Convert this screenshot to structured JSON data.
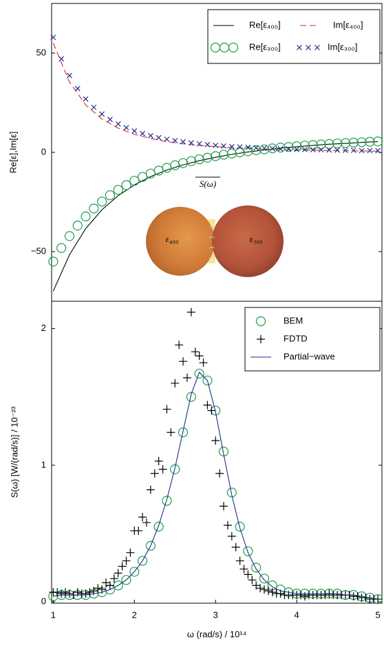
{
  "chart_data": [
    {
      "type": "line",
      "ylabel": "Re[ε],Im[ε]",
      "xlim": [
        0.98,
        5.05
      ],
      "ylim": [
        -75,
        75
      ],
      "yticks": [
        {
          "value": -50,
          "label": "−50"
        },
        0,
        50
      ],
      "legend": "upper right",
      "legend_columns": 2,
      "inset": {
        "left": "ε₄₀₀",
        "right": "ε₃₀₀",
        "flux": "S(ω)"
      },
      "series": [
        {
          "name": "Re[ε₄₀₀]",
          "marker": "line",
          "color": "#000000",
          "x": [
            1,
            1.2,
            1.4,
            1.6,
            1.8,
            2,
            2.2,
            2.4,
            2.6,
            2.8,
            3,
            3.2,
            3.4,
            3.6,
            3.8,
            4,
            4.2,
            4.4,
            4.6,
            4.8,
            5
          ],
          "values": [
            -69.9,
            -51.6,
            -38.4,
            -28.9,
            -21.8,
            -16.4,
            -12.2,
            -8.9,
            -6.3,
            -4.2,
            -2.5,
            -1.0,
            0.2,
            1.2,
            2.1,
            2.8,
            3.5,
            4.1,
            4.5,
            5.0,
            5.4
          ]
        },
        {
          "name": "Im[ε₄₀₀]",
          "marker": "dashed",
          "color": "#e0202a",
          "x": [
            1,
            1.2,
            1.4,
            1.6,
            1.8,
            2,
            2.2,
            2.4,
            2.6,
            2.8,
            3,
            3.2,
            3.4,
            3.6,
            3.8,
            4,
            4.2,
            4.4,
            4.6,
            4.8,
            5
          ],
          "values": [
            55.1,
            35.4,
            23.9,
            16.8,
            12.2,
            9.1,
            7.0,
            5.4,
            4.3,
            3.5,
            2.9,
            2.4,
            2.0,
            1.7,
            1.4,
            1.2,
            1.1,
            0.9,
            0.8,
            0.7,
            0.6
          ]
        },
        {
          "name": "Re[ε₃₀₀]",
          "marker": "circle",
          "color": "#1a9f4a",
          "x": [
            1,
            1.1,
            1.2,
            1.3,
            1.4,
            1.5,
            1.6,
            1.7,
            1.8,
            1.9,
            2,
            2.1,
            2.2,
            2.3,
            2.4,
            2.5,
            2.6,
            2.7,
            2.8,
            2.9,
            3,
            3.1,
            3.2,
            3.3,
            3.4,
            3.5,
            3.6,
            3.7,
            3.8,
            3.9,
            4,
            4.1,
            4.2,
            4.3,
            4.4,
            4.5,
            4.6,
            4.7,
            4.8,
            4.9,
            5
          ],
          "values": [
            -55.0,
            -48.2,
            -42.2,
            -36.9,
            -32.3,
            -28.3,
            -24.8,
            -21.6,
            -18.9,
            -16.5,
            -14.3,
            -12.4,
            -10.7,
            -9.2,
            -7.8,
            -6.5,
            -5.4,
            -4.4,
            -3.5,
            -2.7,
            -1.9,
            -1.2,
            -0.6,
            0.0,
            0.6,
            1.1,
            1.5,
            2.0,
            2.4,
            2.7,
            3.1,
            3.4,
            3.7,
            4.0,
            4.2,
            4.5,
            4.7,
            4.9,
            5.1,
            5.3,
            5.5
          ]
        },
        {
          "name": "Im[ε₃₀₀]",
          "marker": "x",
          "color": "#1f2a8f",
          "x": [
            1,
            1.1,
            1.2,
            1.3,
            1.4,
            1.5,
            1.6,
            1.7,
            1.8,
            1.9,
            2,
            2.1,
            2.2,
            2.3,
            2.4,
            2.5,
            2.6,
            2.7,
            2.8,
            2.9,
            3,
            3.1,
            3.2,
            3.3,
            3.4,
            3.5,
            3.6,
            3.7,
            3.8,
            3.9,
            4,
            4.1,
            4.2,
            4.3,
            4.4,
            4.5,
            4.6,
            4.7,
            4.8,
            4.9,
            5
          ],
          "values": [
            57.9,
            47.1,
            38.7,
            32.1,
            26.9,
            22.7,
            19.3,
            16.6,
            14.3,
            12.4,
            10.8,
            9.5,
            8.4,
            7.4,
            6.6,
            5.9,
            5.3,
            4.8,
            4.3,
            3.9,
            3.5,
            3.2,
            2.9,
            2.7,
            2.5,
            2.3,
            2.1,
            1.9,
            1.8,
            1.7,
            1.5,
            1.4,
            1.3,
            1.3,
            1.2,
            1.1,
            1.0,
            1.0,
            0.9,
            0.9,
            0.8
          ]
        }
      ]
    },
    {
      "type": "line",
      "xlabel": "ω (rad/s) / 10¹⁴",
      "ylabel": "S(ω) [W/(rad/s)] / 10⁻²³",
      "xlim": [
        0.98,
        5.05
      ],
      "ylim": [
        -0.01,
        2.2
      ],
      "xticks": [
        1,
        2,
        3,
        4,
        5
      ],
      "yticks": [
        0,
        1,
        2
      ],
      "legend": "upper right",
      "legend_columns": 1,
      "series": [
        {
          "name": "BEM",
          "marker": "circle",
          "color": "#1a9f4a",
          "x": [
            1,
            1.1,
            1.2,
            1.3,
            1.4,
            1.5,
            1.6,
            1.7,
            1.8,
            1.9,
            2,
            2.1,
            2.2,
            2.3,
            2.4,
            2.5,
            2.6,
            2.7,
            2.8,
            2.9,
            3,
            3.1,
            3.2,
            3.3,
            3.4,
            3.5,
            3.6,
            3.7,
            3.8,
            3.9,
            4,
            4.1,
            4.2,
            4.3,
            4.4,
            4.5,
            4.6,
            4.7,
            4.8,
            4.9,
            5
          ],
          "values": [
            0.04,
            0.05,
            0.05,
            0.05,
            0.05,
            0.06,
            0.07,
            0.09,
            0.12,
            0.16,
            0.22,
            0.3,
            0.41,
            0.55,
            0.74,
            0.97,
            1.24,
            1.5,
            1.67,
            1.62,
            1.4,
            1.1,
            0.8,
            0.55,
            0.37,
            0.25,
            0.17,
            0.12,
            0.09,
            0.07,
            0.06,
            0.06,
            0.06,
            0.06,
            0.06,
            0.06,
            0.05,
            0.05,
            0.04,
            0.03,
            0.02
          ]
        },
        {
          "name": "FDTD",
          "marker": "plus",
          "color": "#000000",
          "x": [
            1,
            1.05,
            1.1,
            1.15,
            1.2,
            1.25,
            1.3,
            1.35,
            1.4,
            1.45,
            1.5,
            1.55,
            1.6,
            1.65,
            1.7,
            1.75,
            1.8,
            1.85,
            1.9,
            1.95,
            2,
            2.05,
            2.1,
            2.15,
            2.2,
            2.25,
            2.3,
            2.35,
            2.4,
            2.45,
            2.5,
            2.55,
            2.6,
            2.65,
            2.7,
            2.75,
            2.8,
            2.85,
            2.9,
            2.95,
            3,
            3.05,
            3.1,
            3.15,
            3.2,
            3.25,
            3.3,
            3.35,
            3.4,
            3.45,
            3.5,
            3.55,
            3.6,
            3.65,
            3.7,
            3.75,
            3.8,
            3.85,
            3.9,
            3.95,
            4,
            4.05,
            4.1,
            4.15,
            4.2,
            4.25,
            4.3,
            4.35,
            4.4,
            4.45,
            4.5,
            4.55,
            4.6,
            4.65,
            4.7,
            4.75,
            4.8,
            4.85,
            4.9,
            4.95,
            5
          ],
          "values": [
            0.07,
            0.07,
            0.06,
            0.07,
            0.06,
            0.05,
            0.07,
            0.06,
            0.06,
            0.07,
            0.08,
            0.1,
            0.09,
            0.14,
            0.12,
            0.17,
            0.21,
            0.26,
            0.3,
            0.36,
            0.52,
            0.52,
            0.62,
            0.58,
            0.82,
            0.94,
            1.03,
            0.97,
            1.41,
            1.24,
            1.6,
            1.88,
            1.76,
            1.64,
            2.12,
            1.83,
            1.8,
            1.75,
            1.44,
            1.4,
            1.18,
            0.94,
            0.7,
            0.56,
            0.48,
            0.4,
            0.3,
            0.24,
            0.2,
            0.16,
            0.12,
            0.1,
            0.09,
            0.08,
            0.07,
            0.06,
            0.06,
            0.05,
            0.05,
            0.05,
            0.05,
            0.05,
            0.04,
            0.05,
            0.05,
            0.05,
            0.05,
            0.05,
            0.06,
            0.05,
            0.05,
            0.05,
            0.05,
            0.05,
            0.04,
            0.04,
            0.03,
            0.03,
            0.02,
            0.02,
            0.02
          ]
        },
        {
          "name": "Partial−wave",
          "marker": "line",
          "color": "#1f2a8f",
          "x": [
            1,
            1.1,
            1.2,
            1.3,
            1.4,
            1.5,
            1.6,
            1.7,
            1.8,
            1.9,
            2,
            2.1,
            2.2,
            2.3,
            2.4,
            2.5,
            2.6,
            2.7,
            2.8,
            2.9,
            3,
            3.1,
            3.2,
            3.3,
            3.4,
            3.5,
            3.6,
            3.7,
            3.8,
            3.9,
            4,
            4.1,
            4.2,
            4.3,
            4.4,
            4.5,
            4.6,
            4.7,
            4.8,
            4.9,
            5
          ],
          "values": [
            0.04,
            0.05,
            0.05,
            0.05,
            0.05,
            0.06,
            0.07,
            0.09,
            0.12,
            0.16,
            0.22,
            0.3,
            0.41,
            0.56,
            0.75,
            0.98,
            1.25,
            1.52,
            1.68,
            1.62,
            1.39,
            1.08,
            0.78,
            0.54,
            0.36,
            0.24,
            0.16,
            0.11,
            0.08,
            0.07,
            0.06,
            0.06,
            0.06,
            0.06,
            0.06,
            0.06,
            0.05,
            0.05,
            0.04,
            0.03,
            0.02
          ]
        }
      ]
    }
  ]
}
